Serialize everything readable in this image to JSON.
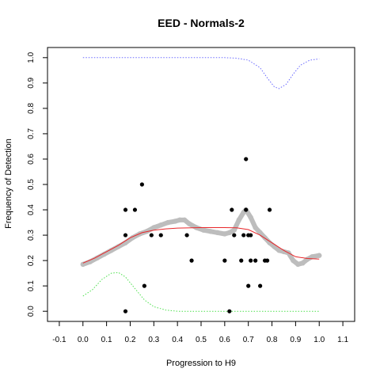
{
  "chart_data": {
    "type": "scatter",
    "title": "EED - Normals-2",
    "xlabel": "Progression to H9",
    "ylabel": "Frequency of Detection",
    "xlim": [
      -0.15,
      1.15
    ],
    "ylim": [
      -0.04,
      1.04
    ],
    "x_ticks": [
      "-0.1",
      "0.0",
      "0.1",
      "0.2",
      "0.3",
      "0.4",
      "0.5",
      "0.6",
      "0.7",
      "0.8",
      "0.9",
      "1.0",
      "1.1"
    ],
    "y_ticks": [
      "0.0",
      "0.1",
      "0.2",
      "0.3",
      "0.4",
      "0.5",
      "0.6",
      "0.7",
      "0.8",
      "0.9",
      "1.0"
    ],
    "grid": false,
    "legend": "none",
    "series": [
      {
        "kind": "points",
        "color": "#000000",
        "points": [
          [
            0.18,
            0.4
          ],
          [
            0.22,
            0.4
          ],
          [
            0.18,
            0.3
          ],
          [
            0.18,
            0.0
          ],
          [
            0.25,
            0.5
          ],
          [
            0.26,
            0.1
          ],
          [
            0.29,
            0.3
          ],
          [
            0.33,
            0.3
          ],
          [
            0.44,
            0.3
          ],
          [
            0.46,
            0.2
          ],
          [
            0.6,
            0.2
          ],
          [
            0.62,
            0.0
          ],
          [
            0.63,
            0.4
          ],
          [
            0.64,
            0.3
          ],
          [
            0.67,
            0.2
          ],
          [
            0.68,
            0.3
          ],
          [
            0.69,
            0.6
          ],
          [
            0.69,
            0.4
          ],
          [
            0.7,
            0.3
          ],
          [
            0.7,
            0.1
          ],
          [
            0.71,
            0.2
          ],
          [
            0.71,
            0.3
          ],
          [
            0.73,
            0.2
          ],
          [
            0.75,
            0.1
          ],
          [
            0.77,
            0.2
          ],
          [
            0.78,
            0.2
          ],
          [
            0.79,
            0.4
          ]
        ]
      },
      {
        "kind": "band",
        "color": "#bdbdbd",
        "points": [
          [
            0.0,
            0.185
          ],
          [
            0.03,
            0.195
          ],
          [
            0.06,
            0.21
          ],
          [
            0.09,
            0.225
          ],
          [
            0.12,
            0.24
          ],
          [
            0.15,
            0.255
          ],
          [
            0.18,
            0.27
          ],
          [
            0.21,
            0.29
          ],
          [
            0.24,
            0.305
          ],
          [
            0.27,
            0.315
          ],
          [
            0.3,
            0.33
          ],
          [
            0.33,
            0.34
          ],
          [
            0.36,
            0.35
          ],
          [
            0.39,
            0.355
          ],
          [
            0.41,
            0.36
          ],
          [
            0.43,
            0.36
          ],
          [
            0.45,
            0.345
          ],
          [
            0.48,
            0.33
          ],
          [
            0.51,
            0.32
          ],
          [
            0.54,
            0.315
          ],
          [
            0.57,
            0.31
          ],
          [
            0.6,
            0.305
          ],
          [
            0.62,
            0.31
          ],
          [
            0.64,
            0.32
          ],
          [
            0.66,
            0.36
          ],
          [
            0.68,
            0.39
          ],
          [
            0.69,
            0.4
          ],
          [
            0.71,
            0.37
          ],
          [
            0.73,
            0.33
          ],
          [
            0.75,
            0.31
          ],
          [
            0.77,
            0.29
          ],
          [
            0.79,
            0.27
          ],
          [
            0.81,
            0.255
          ],
          [
            0.83,
            0.24
          ],
          [
            0.85,
            0.235
          ],
          [
            0.87,
            0.23
          ],
          [
            0.89,
            0.2
          ],
          [
            0.91,
            0.185
          ],
          [
            0.93,
            0.19
          ],
          [
            0.95,
            0.205
          ],
          [
            0.97,
            0.215
          ],
          [
            1.0,
            0.22
          ]
        ]
      },
      {
        "kind": "line",
        "color": "#e8262a",
        "style": "solid",
        "points": [
          [
            0.0,
            0.19
          ],
          [
            0.05,
            0.21
          ],
          [
            0.1,
            0.235
          ],
          [
            0.15,
            0.26
          ],
          [
            0.2,
            0.29
          ],
          [
            0.25,
            0.31
          ],
          [
            0.3,
            0.32
          ],
          [
            0.35,
            0.325
          ],
          [
            0.4,
            0.328
          ],
          [
            0.5,
            0.33
          ],
          [
            0.6,
            0.33
          ],
          [
            0.65,
            0.329
          ],
          [
            0.7,
            0.322
          ],
          [
            0.75,
            0.3
          ],
          [
            0.8,
            0.27
          ],
          [
            0.85,
            0.24
          ],
          [
            0.9,
            0.215
          ],
          [
            0.95,
            0.208
          ],
          [
            1.0,
            0.206
          ]
        ]
      },
      {
        "kind": "line",
        "color": "#6a6aff",
        "style": "dotted",
        "points": [
          [
            0.0,
            1.0
          ],
          [
            0.6,
            1.0
          ],
          [
            0.65,
            0.998
          ],
          [
            0.7,
            0.99
          ],
          [
            0.75,
            0.96
          ],
          [
            0.78,
            0.92
          ],
          [
            0.81,
            0.885
          ],
          [
            0.83,
            0.878
          ],
          [
            0.86,
            0.895
          ],
          [
            0.89,
            0.935
          ],
          [
            0.92,
            0.97
          ],
          [
            0.96,
            0.99
          ],
          [
            1.0,
            0.995
          ]
        ]
      },
      {
        "kind": "line",
        "color": "#4ce04c",
        "style": "dotted",
        "points": [
          [
            0.0,
            0.06
          ],
          [
            0.04,
            0.085
          ],
          [
            0.08,
            0.125
          ],
          [
            0.12,
            0.15
          ],
          [
            0.15,
            0.153
          ],
          [
            0.18,
            0.135
          ],
          [
            0.22,
            0.09
          ],
          [
            0.26,
            0.045
          ],
          [
            0.3,
            0.018
          ],
          [
            0.35,
            0.005
          ],
          [
            0.4,
            0.0
          ],
          [
            1.0,
            0.0
          ]
        ]
      }
    ]
  }
}
